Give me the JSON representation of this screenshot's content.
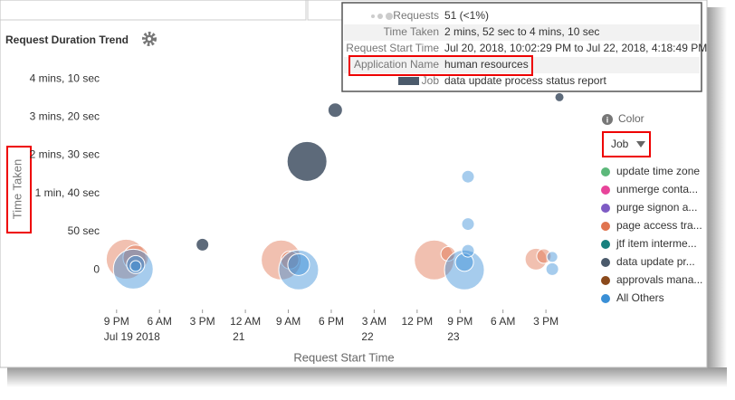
{
  "chart_data": {
    "type": "bubble",
    "title": "Request Duration Trend",
    "x_label": "Request Start Time",
    "y_label": "Time Taken",
    "xlim": [
      "2018-07-19T18:00",
      "2018-07-23T22:00"
    ],
    "xticks": [
      {
        "value": "2018-07-19T21:00",
        "label": "9 PM",
        "date_label": "Jul 19 2018"
      },
      {
        "value": "2018-07-20T06:00",
        "label": "6 AM"
      },
      {
        "value": "2018-07-20T15:00",
        "label": "3 PM"
      },
      {
        "value": "2018-07-21T00:00",
        "label": "12 AM",
        "date_label": "21"
      },
      {
        "value": "2018-07-21T09:00",
        "label": "9 AM"
      },
      {
        "value": "2018-07-21T18:00",
        "label": "6 PM"
      },
      {
        "value": "2018-07-22T03:00",
        "label": "3 AM",
        "date_label": "22"
      },
      {
        "value": "2018-07-22T12:00",
        "label": "12 PM"
      },
      {
        "value": "2018-07-22T21:00",
        "label": "9 PM",
        "date_label": "23"
      },
      {
        "value": "2018-07-23T06:00",
        "label": "6 AM"
      },
      {
        "value": "2018-07-23T15:00",
        "label": "3 PM"
      }
    ],
    "ylim": [
      -8,
      275
    ],
    "yticks": [
      0,
      {
        "value": 50,
        "label": "50 sec"
      },
      {
        "value": 100,
        "label": "1 min, 40 sec"
      },
      {
        "value": 150,
        "label": "2 mins, 30 sec"
      },
      {
        "value": 200,
        "label": "3 mins, 20 sec"
      },
      {
        "value": 250,
        "label": "4 mins, 10 sec"
      }
    ],
    "grid": false,
    "legend_title": "Color",
    "color_by": "Job",
    "series": [
      {
        "name": "update time zone",
        "color": "#5cb87a",
        "x": [],
        "values": [],
        "sizes": []
      },
      {
        "name": "unmerge conta...",
        "color": "#e8449a",
        "x": [],
        "values": [],
        "sizes": []
      },
      {
        "name": "purge signon a...",
        "color": "#7e5bc4",
        "x": [],
        "values": [],
        "sizes": []
      },
      {
        "name": "page access tra...",
        "color": "#e0744f",
        "x": [
          "2018-07-19T23:00",
          "2018-07-20T01:00",
          "2018-07-21T07:30",
          "2018-07-21T09:20",
          "2018-07-22T15:35",
          "2018-07-22T18:30",
          "2018-07-23T12:55",
          "2018-07-23T14:35"
        ],
        "values": [
          14,
          16,
          13,
          13,
          13,
          21,
          14,
          18
        ],
        "sizes": [
          386,
          156,
          386,
          80,
          386,
          51,
          115,
          51
        ]
      },
      {
        "name": "jtf item interme...",
        "color": "#17807e",
        "x": [],
        "values": [],
        "sizes": []
      },
      {
        "name": "data update pr...",
        "color": "#4b5a6b",
        "x": [
          "2018-07-20T15:00",
          "2018-07-21T12:55",
          "2018-07-21T18:50",
          "2018-07-23T17:50"
        ],
        "values": [
          33,
          142,
          209,
          226
        ],
        "sizes": [
          39,
          386,
          51,
          20
        ]
      },
      {
        "name": "approvals mana...",
        "color": "#8b4a1c",
        "x": [],
        "values": [],
        "sizes": []
      },
      {
        "name": "All Others",
        "color": "#3a8fd6",
        "x": [
          "2018-07-20T00:30",
          "2018-07-20T01:00",
          "2018-07-20T01:00",
          "2018-07-21T11:10",
          "2018-07-21T11:10",
          "2018-07-22T21:55",
          "2018-07-22T21:55",
          "2018-07-22T22:40",
          "2018-07-22T22:40",
          "2018-07-22T22:40",
          "2018-07-23T16:20",
          "2018-07-23T16:20"
        ],
        "values": [
          1,
          7,
          5,
          0,
          7,
          0,
          10,
          122,
          60,
          25,
          17,
          1
        ],
        "sizes": [
          386,
          80,
          29,
          386,
          115,
          386,
          80,
          39,
          39,
          39,
          29,
          39
        ]
      }
    ],
    "tooltip": {
      "rows": [
        {
          "label": "Requests",
          "value": "51 (<1%)"
        },
        {
          "label": "Time Taken",
          "value": "2 mins, 52 sec to 4 mins, 10 sec"
        },
        {
          "label": "Request Start Time",
          "value": "Jul 20, 2018, 10:02:29 PM to Jul 22, 2018, 4:18:49 PM"
        },
        {
          "label": "Application Name",
          "value": "human resources"
        },
        {
          "label": "Job",
          "value": "data update process status report"
        }
      ]
    }
  }
}
